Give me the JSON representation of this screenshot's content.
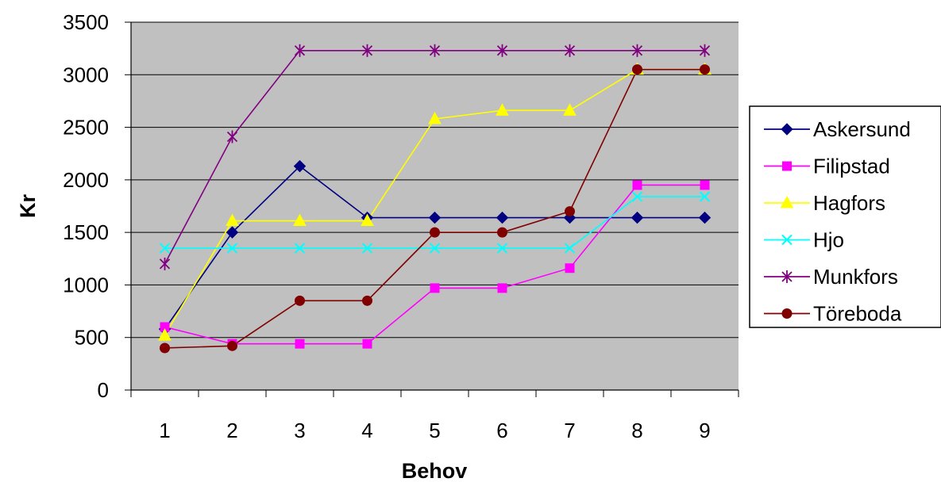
{
  "chart_data": {
    "type": "line",
    "title": "",
    "xlabel": "Behov",
    "ylabel": "Kr",
    "categories": [
      "1",
      "2",
      "3",
      "4",
      "5",
      "6",
      "7",
      "8",
      "9"
    ],
    "ylim": [
      0,
      3500
    ],
    "yticks": [
      "0",
      "500",
      "1000",
      "1500",
      "2000",
      "2500",
      "3000",
      "3500"
    ],
    "grid": "horizontal",
    "legend": "right",
    "plot_background": "#c0c0c0",
    "series": [
      {
        "name": "Askersund",
        "color": "#000080",
        "marker": "diamond",
        "values": [
          580,
          1500,
          2130,
          1640,
          1640,
          1640,
          1640,
          1640,
          1640
        ]
      },
      {
        "name": "Filipstad",
        "color": "#ff00ff",
        "marker": "square",
        "values": [
          600,
          440,
          440,
          440,
          970,
          970,
          1160,
          1950,
          1950
        ]
      },
      {
        "name": "Hagfors",
        "color": "#ffff00",
        "marker": "triangle",
        "values": [
          520,
          1610,
          1610,
          1610,
          2580,
          2660,
          2660,
          3050,
          3050
        ]
      },
      {
        "name": "Hjo",
        "color": "#00ffff",
        "marker": "x",
        "values": [
          1350,
          1350,
          1350,
          1350,
          1350,
          1350,
          1350,
          1840,
          1840
        ]
      },
      {
        "name": "Munkfors",
        "color": "#800080",
        "marker": "star",
        "values": [
          1200,
          2410,
          3230,
          3230,
          3230,
          3230,
          3230,
          3230,
          3230
        ]
      },
      {
        "name": "Töreboda",
        "color": "#800000",
        "marker": "circle",
        "values": [
          400,
          420,
          850,
          850,
          1500,
          1500,
          1700,
          3050,
          3050
        ]
      }
    ]
  }
}
